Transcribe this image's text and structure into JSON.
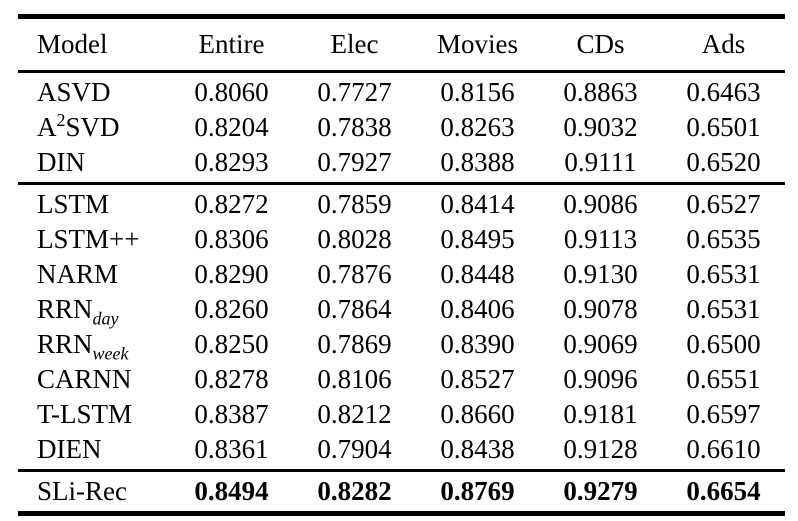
{
  "colors": {
    "background": "#ffffff",
    "text": "#000000",
    "rule": "#000000"
  },
  "table": {
    "columns": [
      "Model",
      "Entire",
      "Elec",
      "Movies",
      "CDs",
      "Ads"
    ],
    "groups": [
      {
        "rows": [
          {
            "model": {
              "text": "ASVD"
            },
            "values": [
              "0.8060",
              "0.7727",
              "0.8156",
              "0.8863",
              "0.6463"
            ],
            "bold_values": false
          },
          {
            "model": {
              "text": "A",
              "sup": "2",
              "text_after": "SVD"
            },
            "values": [
              "0.8204",
              "0.7838",
              "0.8263",
              "0.9032",
              "0.6501"
            ],
            "bold_values": false
          },
          {
            "model": {
              "text": "DIN"
            },
            "values": [
              "0.8293",
              "0.7927",
              "0.8388",
              "0.9111",
              "0.6520"
            ],
            "bold_values": false
          }
        ]
      },
      {
        "rows": [
          {
            "model": {
              "text": "LSTM"
            },
            "values": [
              "0.8272",
              "0.7859",
              "0.8414",
              "0.9086",
              "0.6527"
            ],
            "bold_values": false
          },
          {
            "model": {
              "text": "LSTM++"
            },
            "values": [
              "0.8306",
              "0.8028",
              "0.8495",
              "0.9113",
              "0.6535"
            ],
            "bold_values": false
          },
          {
            "model": {
              "text": "NARM"
            },
            "values": [
              "0.8290",
              "0.7876",
              "0.8448",
              "0.9130",
              "0.6531"
            ],
            "bold_values": false
          },
          {
            "model": {
              "text": "RRN",
              "sub": "day"
            },
            "values": [
              "0.8260",
              "0.7864",
              "0.8406",
              "0.9078",
              "0.6531"
            ],
            "bold_values": false
          },
          {
            "model": {
              "text": "RRN",
              "sub": "week"
            },
            "values": [
              "0.8250",
              "0.7869",
              "0.8390",
              "0.9069",
              "0.6500"
            ],
            "bold_values": false
          },
          {
            "model": {
              "text": "CARNN"
            },
            "values": [
              "0.8278",
              "0.8106",
              "0.8527",
              "0.9096",
              "0.6551"
            ],
            "bold_values": false
          },
          {
            "model": {
              "text": "T-LSTM"
            },
            "values": [
              "0.8387",
              "0.8212",
              "0.8660",
              "0.9181",
              "0.6597"
            ],
            "bold_values": false
          },
          {
            "model": {
              "text": "DIEN"
            },
            "values": [
              "0.8361",
              "0.7904",
              "0.8438",
              "0.9128",
              "0.6610"
            ],
            "bold_values": false
          }
        ]
      },
      {
        "rows": [
          {
            "model": {
              "text": "SLi-Rec"
            },
            "values": [
              "0.8494",
              "0.8282",
              "0.8769",
              "0.9279",
              "0.6654"
            ],
            "bold_values": true
          }
        ]
      }
    ]
  }
}
